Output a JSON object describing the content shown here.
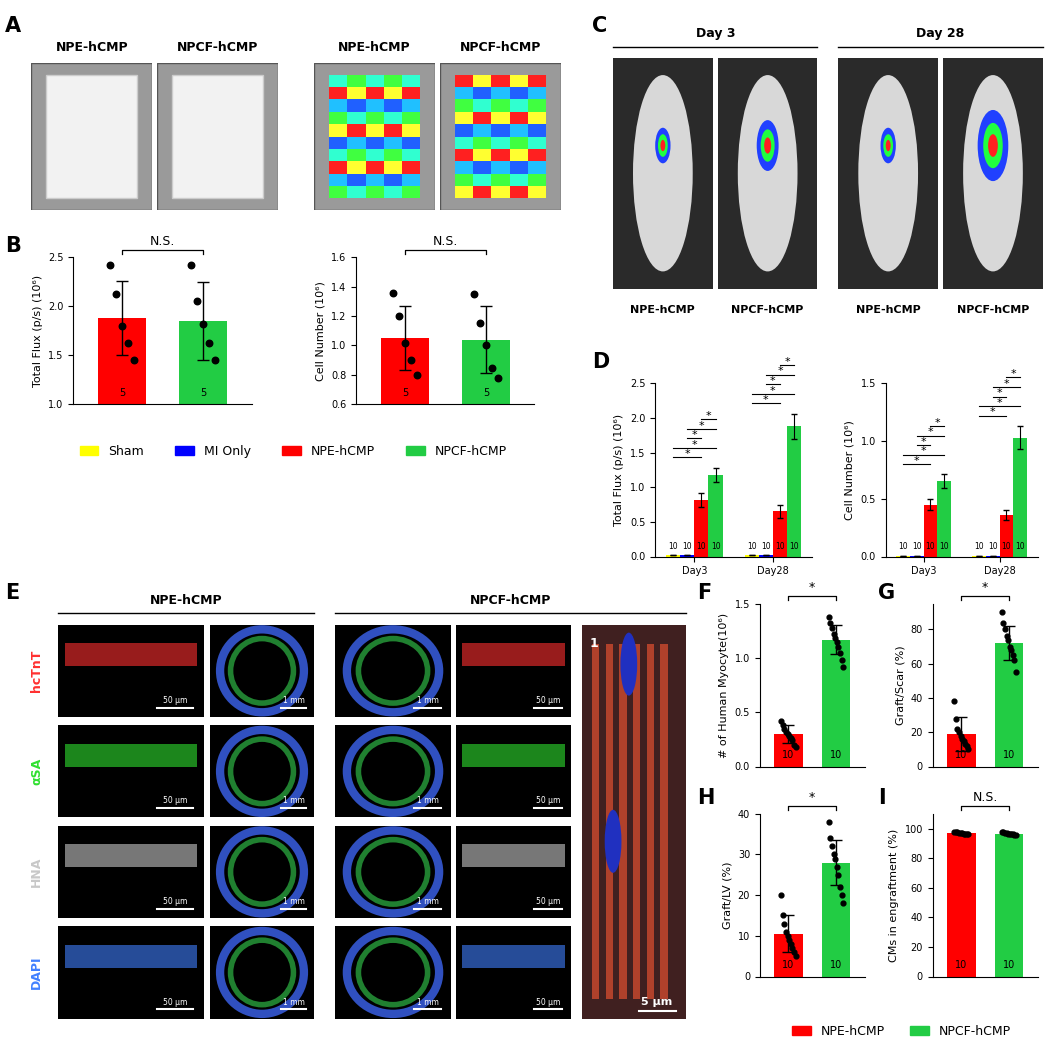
{
  "chart_data": [
    {
      "type": "bar",
      "panel": "B",
      "ylabel": "Total Flux (p/s) (10⁶)",
      "categories": [
        "NPE-hCMP",
        "NPCF-hCMP"
      ],
      "values": [
        1.88,
        1.85
      ],
      "errors": [
        0.38,
        0.4
      ],
      "colors": [
        "#ff0000",
        "#22cc44"
      ],
      "points": [
        [
          2.42,
          2.12,
          1.8,
          1.62,
          1.45
        ],
        [
          2.42,
          2.05,
          1.82,
          1.62,
          1.45
        ]
      ],
      "n": [
        5,
        5
      ],
      "annotation": "N.S.",
      "tick_labels": "y",
      "ylim": [
        1.0,
        2.5
      ],
      "yticks": [
        {
          "value": 1.0,
          "label": "1.0"
        },
        {
          "value": 1.5,
          "label": "1.5"
        },
        {
          "value": 2.0,
          "label": "2.0"
        },
        {
          "value": 2.5,
          "label": "2.5"
        }
      ]
    },
    {
      "type": "bar",
      "ylabel": "Cell Number (10⁶)",
      "categories": [
        "NPE-hCMP",
        "NPCF-hCMP"
      ],
      "values": [
        1.05,
        1.04
      ],
      "errors": [
        0.22,
        0.23
      ],
      "colors": [
        "#ff0000",
        "#22cc44"
      ],
      "points": [
        [
          1.36,
          1.2,
          1.02,
          0.9,
          0.8
        ],
        [
          1.35,
          1.15,
          1.0,
          0.85,
          0.78
        ]
      ],
      "n": [
        5,
        5
      ],
      "annotation": "N.S.",
      "tick_labels": "y",
      "ylim": [
        0.6,
        1.6
      ],
      "yticks": [
        {
          "value": 0.6,
          "label": "0.6"
        },
        {
          "value": 0.8,
          "label": "0.8"
        },
        {
          "value": 1.0,
          "label": "1.0"
        },
        {
          "value": 1.2,
          "label": "1.2"
        },
        {
          "value": 1.4,
          "label": "1.4"
        },
        {
          "value": 1.6,
          "label": "1.6"
        }
      ]
    },
    {
      "type": "bar",
      "panel": "D",
      "ylabel": "Total Flux (p/s) (10⁶)",
      "categories": [
        "Day3",
        "Day28"
      ],
      "series": [
        {
          "name": "Sham",
          "color": "#ffff00",
          "values": [
            0.02,
            0.02
          ],
          "errors": [
            0.005,
            0.005
          ],
          "n": [
            10,
            10
          ]
        },
        {
          "name": "MI Only",
          "color": "#0000ff",
          "values": [
            0.02,
            0.02
          ],
          "errors": [
            0.005,
            0.005
          ],
          "n": [
            10,
            10
          ]
        },
        {
          "name": "NPE-hCMP",
          "color": "#ff0000",
          "values": [
            0.82,
            0.65
          ],
          "errors": [
            0.1,
            0.1
          ],
          "n": [
            10,
            10
          ]
        },
        {
          "name": "NPCF-hCMP",
          "color": "#22cc44",
          "values": [
            1.18,
            1.88
          ],
          "errors": [
            0.1,
            0.18
          ],
          "n": [
            10,
            10
          ]
        }
      ],
      "significance": {
        "label": "*",
        "pairs": [
          [
            0,
            0,
            2
          ],
          [
            0,
            0,
            3
          ],
          [
            0,
            1,
            2
          ],
          [
            0,
            1,
            3
          ],
          [
            0,
            2,
            3
          ],
          [
            1,
            0,
            2
          ],
          [
            1,
            0,
            3
          ],
          [
            1,
            1,
            2
          ],
          [
            1,
            1,
            3
          ],
          [
            1,
            2,
            3
          ]
        ]
      },
      "ylim": [
        0,
        2.5
      ],
      "yticks": [
        {
          "value": 0,
          "label": "0.0"
        },
        {
          "value": 0.5,
          "label": "0.5"
        },
        {
          "value": 1.0,
          "label": "1.0"
        },
        {
          "value": 1.5,
          "label": "1.5"
        },
        {
          "value": 2.0,
          "label": "2.0"
        },
        {
          "value": 2.5,
          "label": "2.5"
        }
      ]
    },
    {
      "type": "bar",
      "ylabel": "Cell Number (10⁶)",
      "categories": [
        "Day3",
        "Day28"
      ],
      "series": [
        {
          "name": "Sham",
          "color": "#ffff00",
          "values": [
            0.005,
            0.005
          ],
          "errors": [
            0.003,
            0.003
          ],
          "n": [
            10,
            10
          ]
        },
        {
          "name": "MI Only",
          "color": "#0000ff",
          "values": [
            0.005,
            0.005
          ],
          "errors": [
            0.003,
            0.003
          ],
          "n": [
            10,
            10
          ]
        },
        {
          "name": "NPE-hCMP",
          "color": "#ff0000",
          "values": [
            0.45,
            0.36
          ],
          "errors": [
            0.05,
            0.04
          ],
          "n": [
            10,
            10
          ]
        },
        {
          "name": "NPCF-hCMP",
          "color": "#22cc44",
          "values": [
            0.65,
            1.03
          ],
          "errors": [
            0.06,
            0.1
          ],
          "n": [
            10,
            10
          ]
        }
      ],
      "significance": {
        "label": "*",
        "pairs": [
          [
            0,
            0,
            2
          ],
          [
            0,
            0,
            3
          ],
          [
            0,
            1,
            2
          ],
          [
            0,
            1,
            3
          ],
          [
            0,
            2,
            3
          ],
          [
            1,
            0,
            2
          ],
          [
            1,
            0,
            3
          ],
          [
            1,
            1,
            2
          ],
          [
            1,
            1,
            3
          ],
          [
            1,
            2,
            3
          ]
        ]
      },
      "ylim": [
        0,
        1.5
      ],
      "yticks": [
        {
          "value": 0,
          "label": "0.0"
        },
        {
          "value": 0.5,
          "label": "0.5"
        },
        {
          "value": 1.0,
          "label": "1.0"
        },
        {
          "value": 1.5,
          "label": "1.5"
        }
      ]
    },
    {
      "type": "bar",
      "panel": "F",
      "ylabel": "# of Human Myocyte(10⁶)",
      "categories": [
        "NPE-hCMP",
        "NPCF-hCMP"
      ],
      "values": [
        0.3,
        1.17
      ],
      "errors": [
        0.08,
        0.13
      ],
      "colors": [
        "#ff0000",
        "#22cc44"
      ],
      "points": [
        [
          0.42,
          0.38,
          0.35,
          0.32,
          0.3,
          0.28,
          0.26,
          0.24,
          0.2,
          0.18
        ],
        [
          1.38,
          1.32,
          1.28,
          1.22,
          1.18,
          1.15,
          1.1,
          1.05,
          0.98,
          0.92
        ]
      ],
      "n": [
        10,
        10
      ],
      "annotation": "*",
      "tick_labels": "y",
      "ylim": [
        0,
        1.5
      ],
      "yticks": [
        {
          "value": 0,
          "label": "0.0"
        },
        {
          "value": 0.5,
          "label": "0.5"
        },
        {
          "value": 1.0,
          "label": "1.0"
        },
        {
          "value": 1.5,
          "label": "1.5"
        }
      ]
    },
    {
      "type": "bar",
      "panel": "G",
      "ylabel": "Graft/Scar (%)",
      "categories": [
        "NPE-hCMP",
        "NPCF-hCMP"
      ],
      "values": [
        19,
        72
      ],
      "errors": [
        10,
        10
      ],
      "colors": [
        "#ff0000",
        "#22cc44"
      ],
      "points": [
        [
          38,
          28,
          22,
          20,
          18,
          16,
          15,
          13,
          12,
          10
        ],
        [
          90,
          84,
          80,
          76,
          74,
          70,
          68,
          65,
          62,
          55
        ]
      ],
      "n": [
        10,
        10
      ],
      "annotation": "*",
      "tick_labels": "y",
      "ylim": [
        0,
        95
      ],
      "yticks": [
        0,
        20,
        40,
        60,
        80
      ]
    },
    {
      "type": "bar",
      "panel": "H",
      "ylabel": "Graft/LV (%)",
      "categories": [
        "NPE-hCMP",
        "NPCF-hCMP"
      ],
      "values": [
        10.5,
        28
      ],
      "errors": [
        4.5,
        5.5
      ],
      "colors": [
        "#ff0000",
        "#22cc44"
      ],
      "points": [
        [
          20,
          15,
          13,
          11,
          10,
          9,
          8,
          7,
          6,
          5
        ],
        [
          38,
          34,
          32,
          30,
          29,
          27,
          25,
          22,
          20,
          18
        ]
      ],
      "n": [
        10,
        10
      ],
      "annotation": "*",
      "tick_labels": "y",
      "ylim": [
        0,
        40
      ],
      "yticks": [
        0,
        10,
        20,
        30,
        40
      ]
    },
    {
      "type": "bar",
      "panel": "I",
      "ylabel": "CMs in engraftment (%)",
      "categories": [
        "NPE-hCMP",
        "NPCF-hCMP"
      ],
      "values": [
        97,
        96.5
      ],
      "errors": [
        1,
        1
      ],
      "colors": [
        "#ff0000",
        "#22cc44"
      ],
      "points": [
        [
          98,
          98,
          97.5,
          97,
          97,
          97,
          96.5,
          96.5,
          96,
          96
        ],
        [
          98,
          97.5,
          97,
          97,
          96.5,
          96.5,
          96,
          96,
          95.5,
          95.5
        ]
      ],
      "n": [
        10,
        10
      ],
      "annotation": "N.S.",
      "tick_labels": "y",
      "ylim": [
        0,
        110
      ],
      "yticks": [
        0,
        20,
        40,
        60,
        80,
        100
      ]
    }
  ],
  "image_panels": [
    {
      "panel": "A",
      "labels": [
        "NPE-hCMP",
        "NPCF-hCMP",
        "NPE-hCMP",
        "NPCF-hCMP"
      ]
    },
    {
      "panel": "C",
      "groups": [
        "Day 3",
        "Day 28"
      ],
      "labels": [
        "NPE-hCMP",
        "NPCF-hCMP",
        "NPE-hCMP",
        "NPCF-hCMP"
      ]
    },
    {
      "panel": "E",
      "columns": [
        "NPE-hCMP",
        "NPCF-hCMP"
      ],
      "rows": [
        "hcTnT",
        "αSA",
        "HNA",
        "DAPI"
      ],
      "column_scale_bars": [
        "50 μm",
        "1 mm",
        "1 mm",
        "50 μm"
      ],
      "zoom_scale_bar": "5 μm",
      "zoom_label": "1"
    }
  ]
}
